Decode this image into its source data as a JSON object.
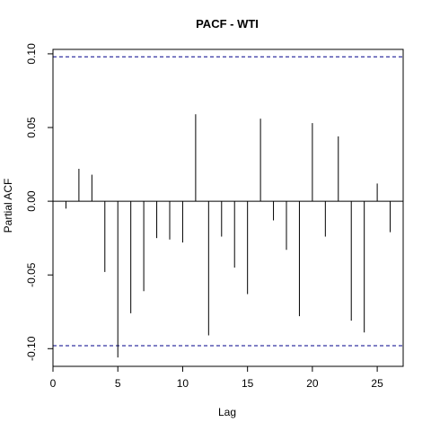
{
  "chart_data": {
    "type": "bar",
    "title": "PACF - WTI",
    "xlabel": "Lag",
    "ylabel": "Partial ACF",
    "xlim": [
      0,
      27
    ],
    "ylim": [
      -0.112,
      0.103
    ],
    "x_ticks": [
      0,
      5,
      10,
      15,
      20,
      25
    ],
    "y_ticks": [
      -0.1,
      -0.05,
      0.0,
      0.05,
      0.1
    ],
    "y_tick_labels": [
      "-0.10",
      "-0.05",
      "0.00",
      "0.05",
      "0.10"
    ],
    "confidence_bound": 0.098,
    "grid": false,
    "lags": [
      1,
      2,
      3,
      4,
      5,
      6,
      7,
      8,
      9,
      10,
      11,
      12,
      13,
      14,
      15,
      16,
      17,
      18,
      19,
      20,
      21,
      22,
      23,
      24,
      25,
      26
    ],
    "values": [
      -0.005,
      0.022,
      0.018,
      -0.048,
      -0.106,
      -0.076,
      -0.061,
      -0.025,
      -0.026,
      -0.028,
      0.059,
      -0.091,
      -0.024,
      -0.045,
      -0.063,
      0.056,
      -0.013,
      -0.033,
      -0.078,
      0.053,
      -0.024,
      0.044,
      -0.081,
      -0.089,
      0.012,
      -0.021
    ],
    "colors": {
      "bars": "#000000",
      "bounds": "#00008b",
      "zero_line": "#000000"
    }
  }
}
